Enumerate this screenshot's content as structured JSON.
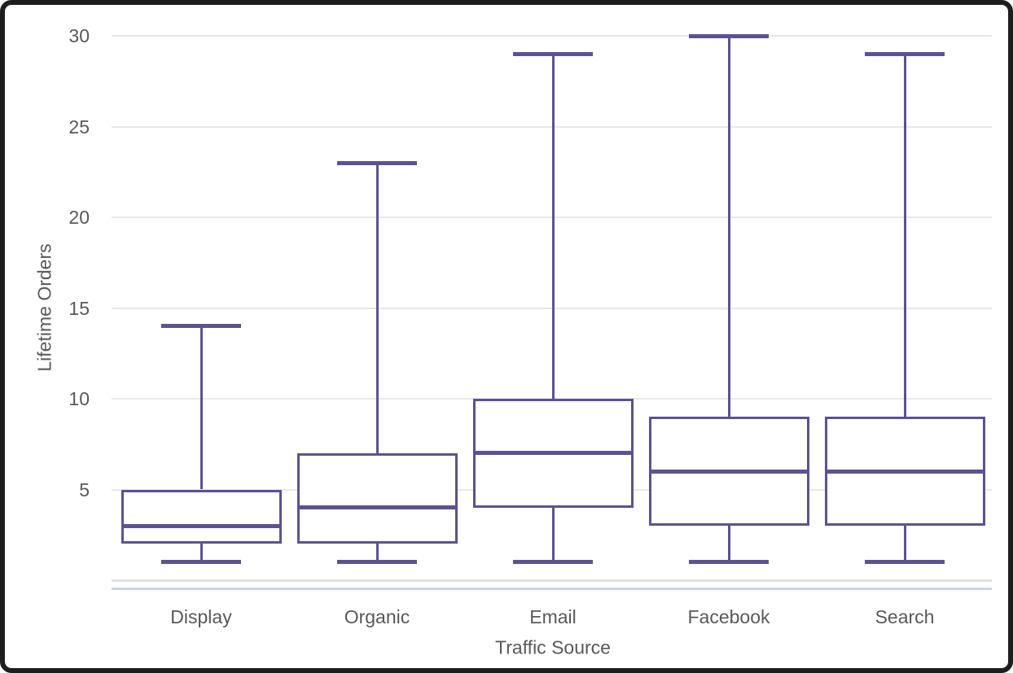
{
  "chart_data": {
    "type": "box",
    "title": "",
    "xlabel": "Traffic Source",
    "ylabel": "Lifetime Orders",
    "categories": [
      "Display",
      "Organic",
      "Email",
      "Facebook",
      "Search"
    ],
    "series": [
      {
        "name": "Display",
        "min": 1,
        "q1": 2,
        "median": 3,
        "q3": 5,
        "max": 14
      },
      {
        "name": "Organic",
        "min": 1,
        "q1": 2,
        "median": 4,
        "q3": 7,
        "max": 23
      },
      {
        "name": "Email",
        "min": 1,
        "q1": 4,
        "median": 7,
        "q3": 10,
        "max": 29
      },
      {
        "name": "Facebook",
        "min": 1,
        "q1": 3,
        "median": 6,
        "q3": 9,
        "max": 30
      },
      {
        "name": "Search",
        "min": 1,
        "q1": 3,
        "median": 6,
        "q3": 9,
        "max": 29
      }
    ],
    "yticks": [
      5,
      10,
      15,
      20,
      25,
      30
    ],
    "ylim": [
      0,
      31
    ],
    "grid": true,
    "legend_position": "none"
  },
  "colors": {
    "box_stroke": "#5e5193",
    "gridline": "#e7e7e7",
    "zeroline": "#e0e0e0",
    "axis_line": "#c9d4ea",
    "text": "#595959",
    "frame_border": "#1e1e1e",
    "background": "#ffffff"
  }
}
